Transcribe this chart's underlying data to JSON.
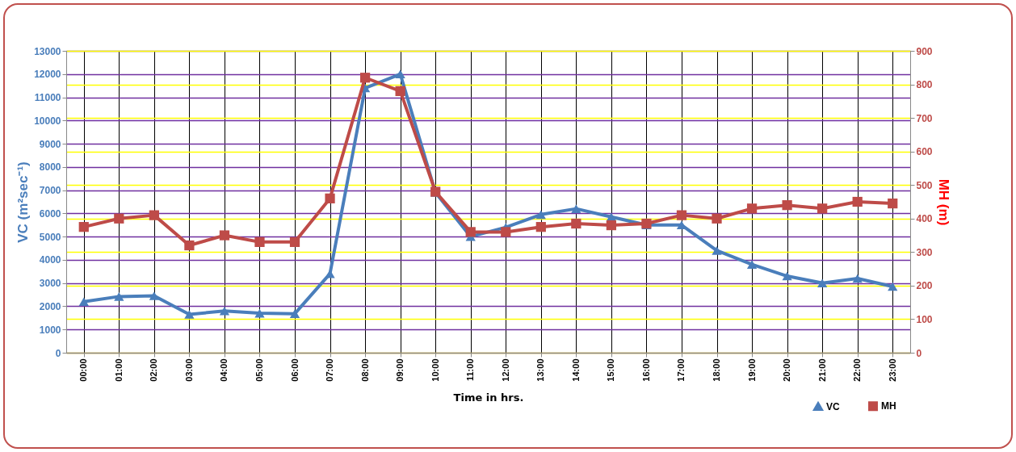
{
  "chart_data": {
    "type": "line",
    "xlabel": "Time in hrs.",
    "ylabel": "VC (m²sec⁻¹)",
    "y2label": "MH (m)",
    "categories": [
      "00:00",
      "01:00",
      "02:00",
      "03:00",
      "04:00",
      "05:00",
      "06:00",
      "07:00",
      "08:00",
      "09:00",
      "10:00",
      "11:00",
      "12:00",
      "13:00",
      "14:00",
      "15:00",
      "16:00",
      "17:00",
      "18:00",
      "19:00",
      "20:00",
      "21:00",
      "22:00",
      "23:00"
    ],
    "series": [
      {
        "name": "VC",
        "color": "#4a7ebb",
        "marker": "triangle",
        "values": [
          2200,
          2420,
          2450,
          1650,
          1800,
          1700,
          1680,
          3400,
          11400,
          12000,
          6900,
          5000,
          5400,
          5950,
          6200,
          5850,
          5500,
          5500,
          4400,
          3800,
          3300,
          3000,
          3200,
          2850
        ]
      },
      {
        "name": "MH",
        "color": "#be4b48",
        "marker": "square",
        "axis": "y2",
        "values": [
          375,
          400,
          410,
          320,
          350,
          330,
          330,
          460,
          820,
          780,
          480,
          360,
          360,
          375,
          385,
          380,
          385,
          410,
          400,
          430,
          440,
          430,
          450,
          445
        ]
      }
    ],
    "ylim": [
      0,
      13000
    ],
    "yticks": [
      0,
      1000,
      2000,
      3000,
      4000,
      5000,
      6000,
      7000,
      8000,
      9000,
      10000,
      11000,
      12000,
      13000
    ],
    "y2lim": [
      0,
      900
    ],
    "y2ticks": [
      0,
      100,
      200,
      300,
      400,
      500,
      600,
      700,
      800,
      900
    ],
    "grid": true,
    "legend": "bottom right",
    "line_style": "solid"
  }
}
